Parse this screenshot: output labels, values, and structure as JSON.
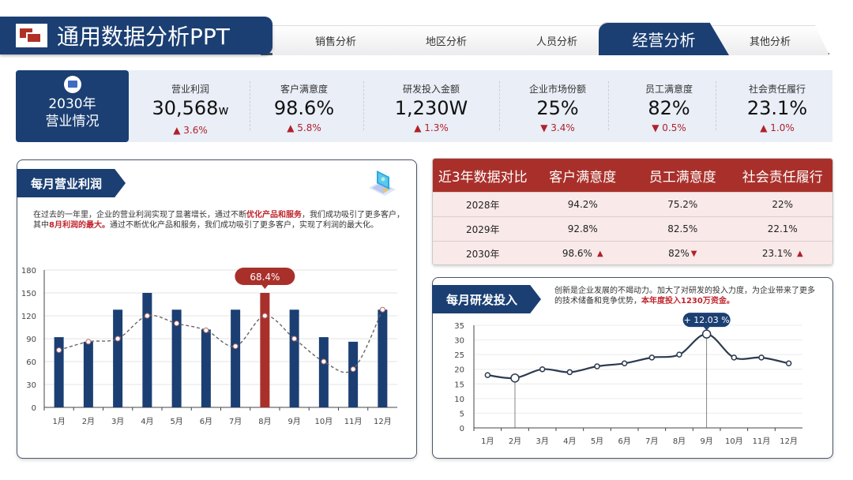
{
  "header": {
    "title": "通用数据分析PPT",
    "tabs": [
      {
        "label": "销售分析",
        "active": false
      },
      {
        "label": "地区分析",
        "active": false
      },
      {
        "label": "人员分析",
        "active": false
      },
      {
        "label": "经营分析",
        "active": true
      },
      {
        "label": "其他分析",
        "active": false
      }
    ]
  },
  "kpi": {
    "lead_line1": "2030年",
    "lead_line2": "营业情况",
    "items": [
      {
        "label": "营业利润",
        "value": "30,568",
        "unit": "w",
        "change": "▲ 3.6%",
        "direction": "up"
      },
      {
        "label": "客户满意度",
        "value": "98.6%",
        "unit": "",
        "change": "▲ 5.8%",
        "direction": "up"
      },
      {
        "label": "研发投入金额",
        "value": "1,230W",
        "unit": "",
        "change": "▲ 1.3%",
        "direction": "up"
      },
      {
        "label": "企业市场份额",
        "value": "25%",
        "unit": "",
        "change": "▼ 3.4%",
        "direction": "down"
      },
      {
        "label": "员工满意度",
        "value": "82%",
        "unit": "",
        "change": "▼ 0.5%",
        "direction": "down"
      },
      {
        "label": "社会责任履行",
        "value": "23.1%",
        "unit": "",
        "change": "▲ 1.0%",
        "direction": "up"
      }
    ]
  },
  "profit_card": {
    "title": "每月营业利润",
    "desc_part1": "在过去的一年里，企业的营业利润实现了显著增长，通过不断",
    "desc_hl1": "优化产品和服务",
    "desc_part2": "，我们成功吸引了更多客户，其中",
    "desc_hl2": "8月利润的最大。",
    "desc_part3": "通过不断优化产品和服务，我们成功吸引了更多客户，实现了利润的最大化。",
    "callout": "68.4%"
  },
  "comparison": {
    "headers": [
      "近3年数据对比",
      "客户满意度",
      "员工满意度",
      "社会责任履行"
    ],
    "rows": [
      {
        "year": "2028年",
        "c1": "94.2%",
        "c2": "75.2%",
        "c3": "22%",
        "m1": "",
        "m2": "",
        "m3": ""
      },
      {
        "year": "2029年",
        "c1": "92.8%",
        "c2": "82.5%",
        "c3": "22.1%",
        "m1": "",
        "m2": "",
        "m3": ""
      },
      {
        "year": "2030年",
        "c1": "98.6%",
        "c2": "82%",
        "c3": "23.1%",
        "m1": "▲",
        "m2": "▼",
        "m3": "▲"
      }
    ]
  },
  "rd_card": {
    "title": "每月研发投入",
    "desc_part1": "创新是企业发展的不竭动力。加大了对研发的投入力度，为企业带来了更多的技术储备和竞争优势，",
    "desc_hl": "本年度投入1230万资金。",
    "callout": "+ 12.03 %"
  },
  "colors": {
    "navy": "#1b3f73",
    "red": "#a9302a",
    "up_down": "#b0212b"
  },
  "chart_data": [
    {
      "type": "bar",
      "title": "每月营业利润",
      "categories": [
        "1月",
        "2月",
        "3月",
        "4月",
        "5月",
        "6月",
        "7月",
        "8月",
        "9月",
        "10月",
        "11月",
        "12月"
      ],
      "series": [
        {
          "name": "营业利润",
          "type": "bar",
          "values": [
            92,
            86,
            128,
            150,
            128,
            102,
            128,
            150,
            128,
            92,
            86,
            128
          ]
        },
        {
          "name": "趋势",
          "type": "line-dashed",
          "values": [
            75,
            86,
            90,
            120,
            110,
            101,
            80,
            120,
            90,
            60,
            50,
            128
          ]
        }
      ],
      "highlight": {
        "category": "8月",
        "label": "68.4%",
        "color": "#a9302a"
      },
      "ylim": [
        0,
        180
      ],
      "yticks": [
        0,
        30,
        60,
        90,
        120,
        150,
        180
      ],
      "grid": true
    },
    {
      "type": "line",
      "title": "每月研发投入",
      "categories": [
        "1月",
        "2月",
        "3月",
        "4月",
        "5月",
        "6月",
        "7月",
        "8月",
        "9月",
        "10月",
        "11月",
        "12月"
      ],
      "series": [
        {
          "name": "研发投入",
          "values": [
            18,
            17,
            20,
            19,
            21,
            22,
            24,
            25,
            32,
            24,
            24,
            22
          ]
        }
      ],
      "annotation": {
        "category": "9月",
        "label": "+ 12.03 %"
      },
      "ylim": [
        0,
        35
      ],
      "yticks": [
        0,
        5,
        10,
        15,
        20,
        25,
        30,
        35
      ],
      "grid": true
    }
  ]
}
